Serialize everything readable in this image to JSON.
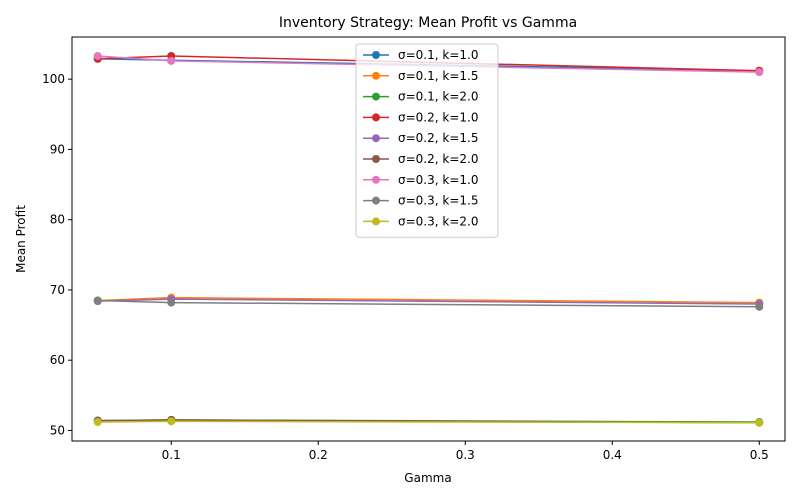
{
  "chart_data": {
    "type": "line",
    "title": "Inventory Strategy: Mean Profit vs Gamma",
    "xlabel": "Gamma",
    "ylabel": "Mean Profit",
    "xlim": [
      0.0325,
      0.5175
    ],
    "ylim": [
      48.5,
      106
    ],
    "xticks": [
      0.1,
      0.2,
      0.3,
      0.4,
      0.5
    ],
    "xtick_labels": [
      "0.1",
      "0.2",
      "0.3",
      "0.4",
      "0.5"
    ],
    "yticks": [
      50,
      60,
      70,
      80,
      90,
      100
    ],
    "ytick_labels": [
      "50",
      "60",
      "70",
      "80",
      "90",
      "100"
    ],
    "grid": false,
    "legend_position": "top-center",
    "x": [
      0.05,
      0.1,
      0.5
    ],
    "series": [
      {
        "name": "σ=0.1, k=1.0",
        "color": "#1f77b4",
        "values": [
          102.9,
          102.7,
          101.2
        ]
      },
      {
        "name": "σ=0.1, k=1.5",
        "color": "#ff7f0e",
        "values": [
          68.5,
          68.9,
          68.2
        ]
      },
      {
        "name": "σ=0.1, k=2.0",
        "color": "#2ca02c",
        "values": [
          51.4,
          51.5,
          51.2
        ]
      },
      {
        "name": "σ=0.2, k=1.0",
        "color": "#d62728",
        "values": [
          102.9,
          103.3,
          101.2
        ]
      },
      {
        "name": "σ=0.2, k=1.5",
        "color": "#9467bd",
        "values": [
          68.4,
          68.7,
          68.0
        ]
      },
      {
        "name": "σ=0.2, k=2.0",
        "color": "#8c564b",
        "values": [
          51.4,
          51.5,
          51.1
        ]
      },
      {
        "name": "σ=0.3, k=1.0",
        "color": "#e377c2",
        "values": [
          103.3,
          102.6,
          101.0
        ]
      },
      {
        "name": "σ=0.3, k=1.5",
        "color": "#7f7f7f",
        "values": [
          68.5,
          68.2,
          67.6
        ]
      },
      {
        "name": "σ=0.3, k=2.0",
        "color": "#bcbd22",
        "values": [
          51.2,
          51.3,
          51.1
        ]
      }
    ]
  }
}
